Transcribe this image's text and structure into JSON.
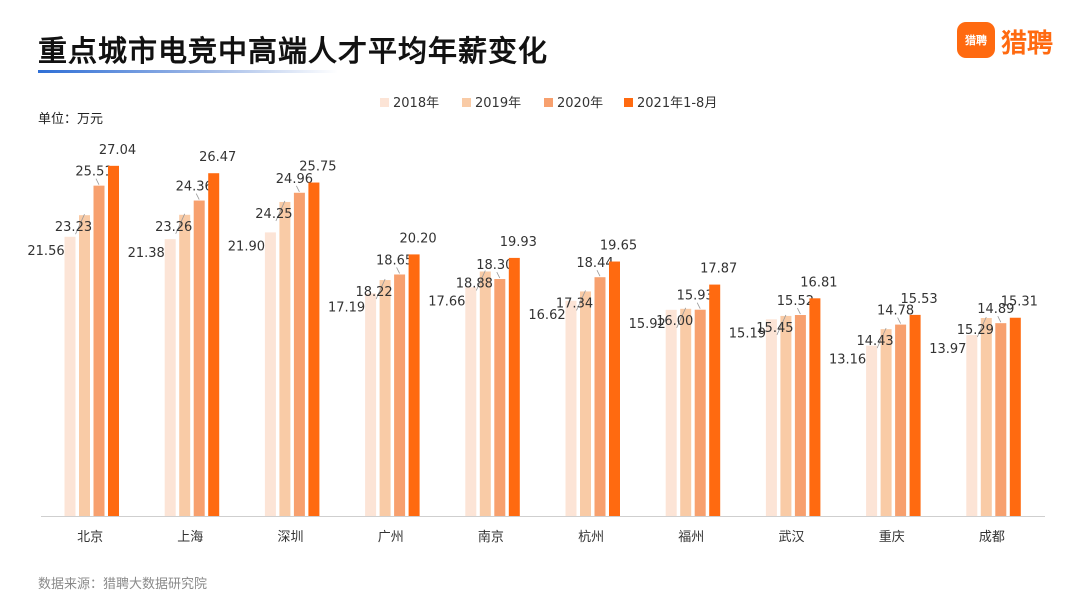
{
  "header": {
    "title": "重点城市电竞中高端人才平均年薪变化",
    "logo_badge": "猎聘",
    "logo_text": "猎聘"
  },
  "unit_label": "单位：万元",
  "source_label": "数据来源：猎聘大数据研究院",
  "chart_data": {
    "type": "bar",
    "title": "重点城市电竞中高端人才平均年薪变化",
    "ylabel": "单位：万元",
    "xlabel": "",
    "ylim": [
      0,
      28
    ],
    "grid": false,
    "legend_position": "top-center",
    "categories": [
      "北京",
      "上海",
      "深圳",
      "广州",
      "南京",
      "杭州",
      "福州",
      "武汉",
      "重庆",
      "成都"
    ],
    "series": [
      {
        "name": "2018年",
        "color": "#fce4d6",
        "values": [
          21.56,
          21.38,
          21.9,
          17.19,
          17.66,
          16.62,
          15.92,
          15.19,
          13.16,
          13.97
        ]
      },
      {
        "name": "2019年",
        "color": "#f9cba6",
        "values": [
          23.23,
          23.26,
          24.25,
          18.22,
          18.88,
          17.34,
          16.0,
          15.45,
          14.43,
          15.29
        ]
      },
      {
        "name": "2020年",
        "color": "#f7a06e",
        "values": [
          25.51,
          24.36,
          24.96,
          18.65,
          18.3,
          18.44,
          15.93,
          15.52,
          14.78,
          14.89
        ]
      },
      {
        "name": "2021年1-8月",
        "color": "#ff6a10",
        "values": [
          27.04,
          26.47,
          25.75,
          20.2,
          19.93,
          19.65,
          17.87,
          16.81,
          15.53,
          15.31
        ]
      }
    ]
  }
}
